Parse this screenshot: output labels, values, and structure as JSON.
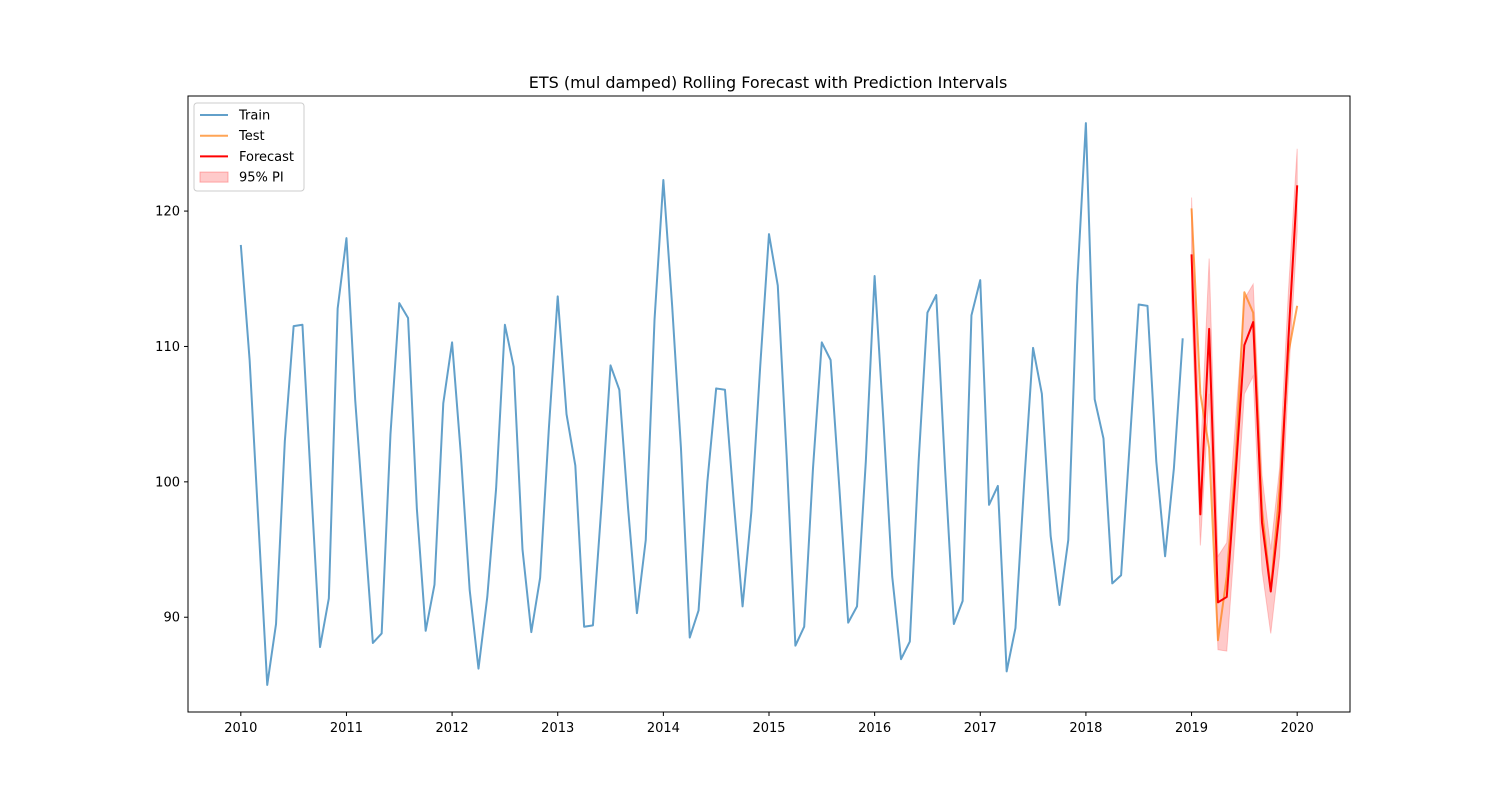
{
  "colors": {
    "train": "#1f77b4",
    "test": "#ff7f0e",
    "forecast": "#ff0000",
    "interval": "#ff6666"
  },
  "chart_data": {
    "type": "line",
    "title": "ETS (mul damped) Rolling Forecast with Prediction Intervals",
    "xlabel": "",
    "ylabel": "",
    "xlim": [
      2009.5,
      2020.5
    ],
    "ylim": [
      83.0,
      128.5
    ],
    "x_ticks": [
      2010,
      2011,
      2012,
      2013,
      2014,
      2015,
      2016,
      2017,
      2018,
      2019,
      2020
    ],
    "x_tick_labels": [
      "2010",
      "2011",
      "2012",
      "2013",
      "2014",
      "2015",
      "2016",
      "2017",
      "2018",
      "2019",
      "2020"
    ],
    "y_ticks": [
      90,
      100,
      110,
      120
    ],
    "y_tick_labels": [
      "90",
      "100",
      "110",
      "120"
    ],
    "grid": false,
    "legend_position": "top-left",
    "series": [
      {
        "name": "Train",
        "x_start": 2010.0,
        "x_step": 0.08333,
        "values": [
          117.5,
          109.0,
          97.0,
          85.0,
          89.5,
          103.0,
          111.5,
          111.6,
          99.5,
          87.8,
          91.4,
          112.8,
          118.0,
          106.0,
          97.0,
          88.1,
          88.8,
          103.5,
          113.2,
          112.1,
          98.0,
          89.0,
          92.4,
          105.8,
          110.3,
          102.0,
          92.0,
          86.2,
          91.5,
          99.5,
          111.6,
          108.5,
          95.0,
          88.9,
          92.9,
          104.0,
          113.7,
          105.0,
          101.2,
          89.3,
          89.4,
          98.5,
          108.6,
          106.8,
          98.0,
          90.3,
          95.7,
          112.0,
          122.3,
          113.0,
          102.5,
          88.5,
          90.5,
          100.0,
          106.9,
          106.8,
          98.5,
          90.8,
          97.8,
          108.5,
          118.3,
          114.5,
          102.0,
          87.9,
          89.3,
          101.0,
          110.3,
          109.0,
          99.5,
          89.6,
          90.8,
          101.5,
          115.2,
          104.5,
          93.0,
          86.9,
          88.2,
          101.5,
          112.5,
          113.8,
          101.0,
          89.5,
          91.2,
          112.3,
          114.9,
          98.3,
          99.7,
          86.0,
          89.2,
          100.0,
          109.9,
          106.5,
          96.0,
          90.9,
          95.7,
          114.5,
          126.5,
          106.1,
          103.2,
          92.5,
          93.1,
          103.0,
          113.1,
          113.0,
          101.5,
          94.5,
          101.0,
          110.6
        ]
      },
      {
        "name": "Test",
        "x_start": 2019.0,
        "x_step": 0.08333,
        "values": [
          120.2,
          106.5,
          102.5,
          88.3,
          93.0,
          101.5,
          114.0,
          112.5,
          98.0,
          92.0,
          99.5,
          109.5,
          113.0
        ]
      },
      {
        "name": "Forecast",
        "x_start": 2019.0,
        "x_step": 0.08333,
        "values": [
          116.8,
          97.6,
          111.3,
          91.1,
          91.5,
          100.5,
          110.1,
          111.8,
          97.0,
          91.9,
          97.8,
          110.5,
          121.9
        ]
      },
      {
        "name": "95% PI",
        "x_start": 2019.0,
        "x_step": 0.08333,
        "lower": [
          113.5,
          95.3,
          106.5,
          87.6,
          87.5,
          96.5,
          106.5,
          107.8,
          93.5,
          88.8,
          94.5,
          107.5,
          118.5
        ],
        "upper": [
          121.0,
          101.5,
          116.5,
          94.5,
          95.5,
          104.5,
          113.5,
          114.6,
          100.5,
          95.0,
          101.0,
          114.0,
          124.6
        ]
      }
    ]
  }
}
